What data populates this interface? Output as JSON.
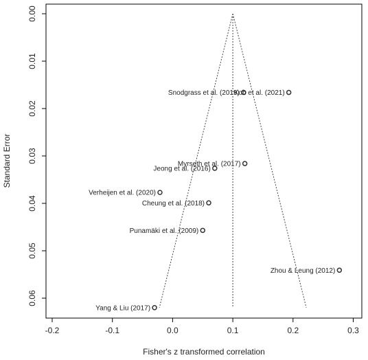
{
  "chart_data": {
    "type": "scatter",
    "subtype": "funnel plot",
    "xlabel": "Fisher's z transformed correlation",
    "ylabel": "Standard Error",
    "xlim": [
      -0.25,
      0.32
    ],
    "ylim": [
      0.0635,
      0.0
    ],
    "y_reversed": true,
    "x_ticks": [
      -0.2,
      -0.1,
      0.0,
      0.1,
      0.2,
      0.3
    ],
    "x_tick_labels": [
      "-0.2",
      "-0.1",
      "0.0",
      "0.1",
      "0.2",
      "0.3"
    ],
    "y_ticks": [
      0.0,
      0.01,
      0.02,
      0.03,
      0.04,
      0.05,
      0.06
    ],
    "y_tick_labels": [
      "0.00",
      "0.01",
      "0.02",
      "0.03",
      "0.04",
      "0.05",
      "0.06"
    ],
    "summary_effect": 0.1,
    "funnel": {
      "apex": [
        0.1,
        0.0
      ],
      "left_base": [
        -0.022,
        0.062
      ],
      "right_base": [
        0.222,
        0.062
      ]
    },
    "grid": false,
    "points": [
      {
        "label": "Snodgrass et al. (2019)",
        "x": 0.118,
        "y": 0.0166
      },
      {
        "label": "Kob et al. (2021)",
        "x": 0.193,
        "y": 0.0166
      },
      {
        "label": "Myrseth et al. (2017)",
        "x": 0.12,
        "y": 0.0316
      },
      {
        "label": "Jeong et al. (2016)",
        "x": 0.07,
        "y": 0.0326
      },
      {
        "label": "Verheijen et al. (2020)",
        "x": -0.021,
        "y": 0.0377
      },
      {
        "label": "Cheung et al. (2018)",
        "x": 0.06,
        "y": 0.0399
      },
      {
        "label": "Punamäki et al. (2009)",
        "x": 0.05,
        "y": 0.0457
      },
      {
        "label": "Zhou & Leung (2012)",
        "x": 0.277,
        "y": 0.0541
      },
      {
        "label": "Yang & Liu (2017)",
        "x": -0.03,
        "y": 0.062
      }
    ]
  }
}
